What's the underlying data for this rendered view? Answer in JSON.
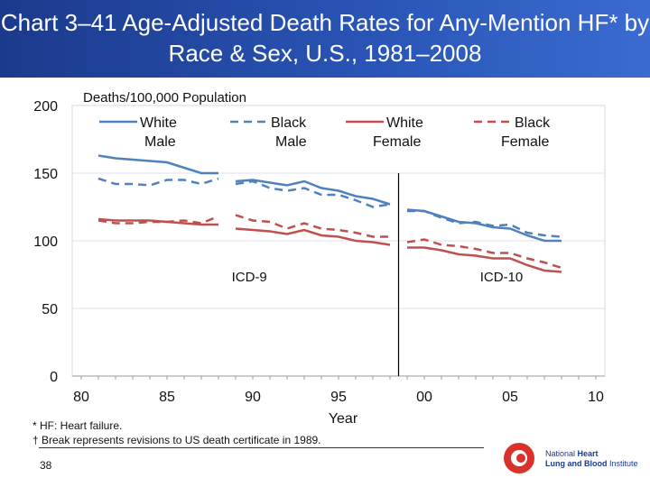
{
  "title": "Chart 3–41 Age-Adjusted Death Rates for Any-Mention HF* by Race & Sex, U.S., 1981–2008",
  "footnotes": [
    "* HF: Heart failure.",
    "† Break represents revisions to US death certificate in 1989."
  ],
  "page_number": "38",
  "logo": "National Heart Lung and Blood Institute",
  "chart_data": {
    "type": "line",
    "ylabel": "Deaths/100,000 Population",
    "xlabel": "Year",
    "ylim": [
      0,
      200
    ],
    "xlim": [
      1980,
      2010
    ],
    "yticks": [
      "0",
      "50",
      "100",
      "150",
      "200"
    ],
    "xticks": [
      "80",
      "85",
      "90",
      "95",
      "00",
      "05",
      "10"
    ],
    "grid": true,
    "legend": "top",
    "annotations": [
      {
        "text": "ICD-9",
        "x": 1989.8,
        "y": 50
      },
      {
        "text": "ICD-10",
        "x": 2004.5,
        "y": 50
      }
    ],
    "break_year": 1998.5,
    "segments": [
      [
        1981,
        1988
      ],
      [
        1989,
        1998
      ],
      [
        1999,
        2008
      ]
    ],
    "series": [
      {
        "name": "White Male",
        "color": "#4f81bd",
        "dash": false,
        "values": [
          163,
          161,
          160,
          159,
          158,
          154,
          150,
          150,
          144,
          145,
          143,
          141,
          144,
          139,
          137,
          133,
          131,
          127,
          123,
          122,
          118,
          114,
          113,
          110,
          109,
          104,
          100,
          100
        ]
      },
      {
        "name": "Black Male",
        "color": "#4f81bd",
        "dash": true,
        "values": [
          146,
          142,
          142,
          141,
          145,
          145,
          142,
          146,
          142,
          144,
          139,
          137,
          139,
          134,
          134,
          130,
          125,
          127,
          122,
          122,
          117,
          113,
          114,
          111,
          112,
          106,
          104,
          103
        ]
      },
      {
        "name": "White Female",
        "color": "#c0504d",
        "dash": false,
        "values": [
          116,
          115,
          115,
          115,
          114,
          113,
          112,
          112,
          109,
          108,
          107,
          105,
          108,
          104,
          103,
          100,
          99,
          97,
          95,
          95,
          93,
          90,
          89,
          87,
          87,
          82,
          78,
          77
        ]
      },
      {
        "name": "Black Female",
        "color": "#c0504d",
        "dash": true,
        "values": [
          115,
          113,
          113,
          114,
          114,
          115,
          113,
          118,
          119,
          115,
          114,
          109,
          113,
          109,
          108,
          106,
          103,
          103,
          99,
          101,
          97,
          96,
          94,
          91,
          91,
          87,
          84,
          80
        ]
      }
    ]
  }
}
